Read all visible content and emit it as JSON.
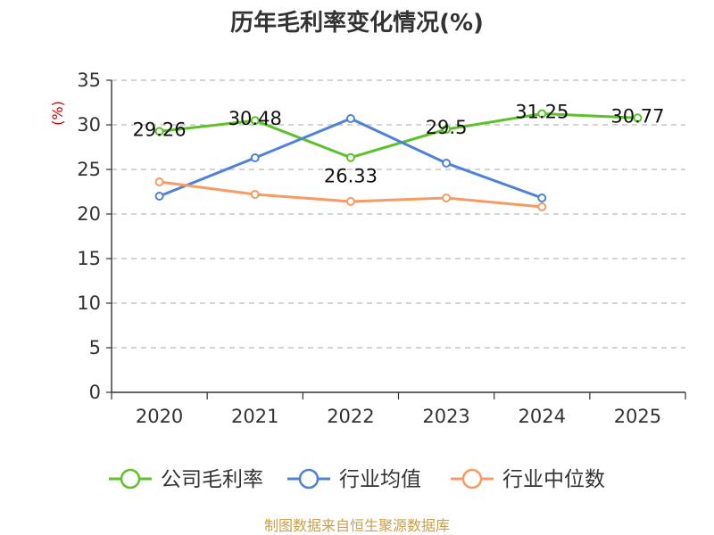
{
  "chart_data": {
    "type": "line",
    "title": "历年毛利率变化情况(%)",
    "ylabel": "(%)",
    "xlabel": "",
    "categories": [
      "2020",
      "2021",
      "2022",
      "2023",
      "2024",
      "2025"
    ],
    "ylim": [
      0,
      35
    ],
    "yticks": [
      0,
      5,
      10,
      15,
      20,
      25,
      30,
      35
    ],
    "grid": true,
    "legend_position": "bottom",
    "series": [
      {
        "name": "公司毛利率",
        "color": "#5ec12c",
        "values": [
          29.26,
          30.48,
          26.33,
          29.5,
          31.25,
          30.77
        ],
        "labels": [
          "29.26",
          "30.48",
          "26.33",
          "29.5",
          "31.25",
          "30.77"
        ]
      },
      {
        "name": "行业均值",
        "color": "#4f81d9",
        "values": [
          22.0,
          26.3,
          30.7,
          25.7,
          21.8,
          null
        ]
      },
      {
        "name": "行业中位数",
        "color": "#f79a63",
        "values": [
          23.6,
          22.2,
          21.4,
          21.8,
          20.8,
          null
        ]
      }
    ],
    "source": "制图数据来自恒生聚源数据库"
  }
}
